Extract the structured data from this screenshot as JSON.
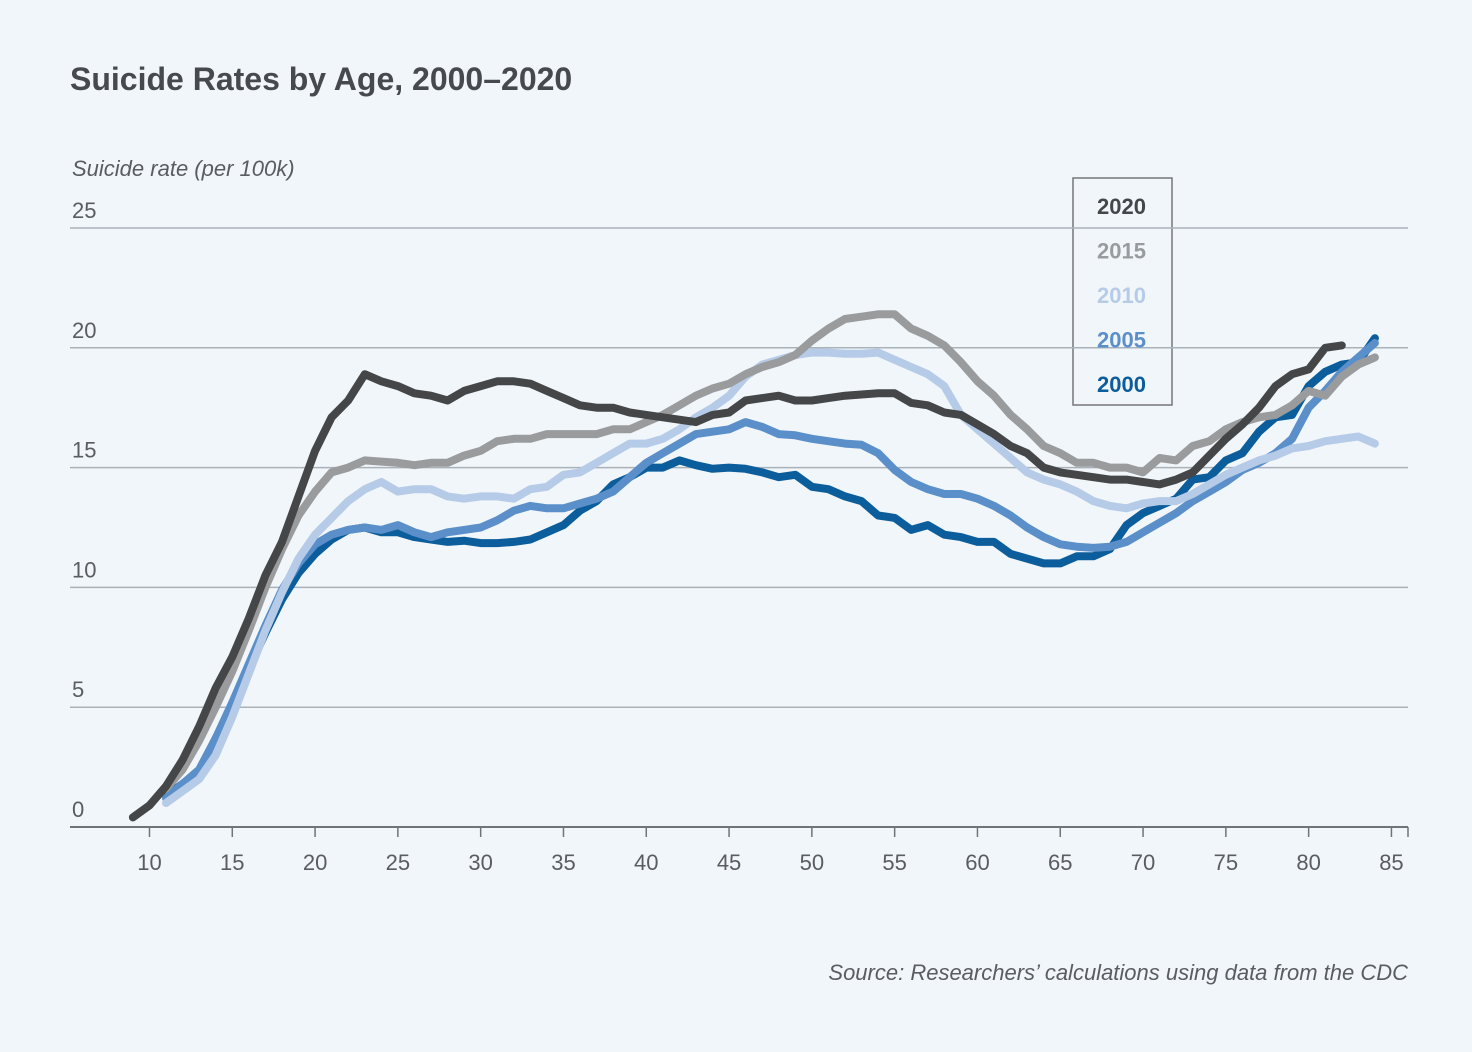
{
  "chart_data": {
    "type": "line",
    "title": "Suicide Rates by Age, 2000–2020",
    "y_label": "Suicide rate (per 100k)",
    "source": "Source: Researchers’ calculations using data from the CDC",
    "xlim": [
      5.2,
      86
    ],
    "xticks": [
      10,
      15,
      20,
      25,
      30,
      35,
      40,
      45,
      50,
      55,
      60,
      65,
      70,
      75,
      80,
      85
    ],
    "ylim": [
      0,
      25
    ],
    "yticks": [
      0,
      5,
      10,
      15,
      20,
      25
    ],
    "grid": true,
    "series": [
      {
        "name": "2020",
        "color": "#444648",
        "x": [
          9,
          10,
          11,
          12,
          13,
          14,
          15,
          16,
          17,
          18,
          19,
          20,
          21,
          22,
          23,
          24,
          25,
          26,
          27,
          28,
          29,
          30,
          31,
          32,
          33,
          34,
          35,
          36,
          37,
          38,
          39,
          40,
          41,
          42,
          43,
          44,
          45,
          46,
          47,
          48,
          49,
          50,
          51,
          52,
          53,
          54,
          55,
          56,
          57,
          58,
          59,
          60,
          61,
          62,
          63,
          64,
          65,
          66,
          67,
          68,
          69,
          70,
          71,
          72,
          73,
          74,
          75,
          76,
          77,
          78,
          79,
          80,
          81,
          82
        ],
        "values": [
          0.4,
          0.9,
          1.7,
          2.8,
          4.2,
          5.8,
          7.1,
          8.7,
          10.5,
          11.9,
          13.8,
          15.7,
          17.1,
          17.8,
          18.9,
          18.6,
          18.4,
          18.1,
          18.0,
          17.8,
          18.2,
          18.4,
          18.6,
          18.6,
          18.5,
          18.2,
          17.9,
          17.6,
          17.5,
          17.5,
          17.3,
          17.2,
          17.1,
          17.0,
          16.9,
          17.2,
          17.3,
          17.8,
          17.9,
          18.0,
          17.8,
          17.8,
          17.9,
          18.0,
          18.05,
          18.1,
          18.1,
          17.7,
          17.6,
          17.3,
          17.2,
          16.8,
          16.4,
          15.9,
          15.6,
          15.0,
          14.8,
          14.7,
          14.6,
          14.5,
          14.5,
          14.4,
          14.3,
          14.5,
          14.8,
          15.5,
          16.2,
          16.8,
          17.5,
          18.4,
          18.9,
          19.1,
          20.0,
          20.1
        ]
      },
      {
        "name": "2015",
        "color": "#9a9b9d",
        "x": [
          11,
          12,
          13,
          14,
          15,
          16,
          17,
          18,
          19,
          20,
          21,
          22,
          23,
          24,
          25,
          26,
          27,
          28,
          29,
          30,
          31,
          32,
          33,
          34,
          35,
          36,
          37,
          38,
          39,
          40,
          41,
          42,
          43,
          44,
          45,
          46,
          47,
          48,
          49,
          50,
          51,
          52,
          53,
          54,
          55,
          56,
          57,
          58,
          59,
          60,
          61,
          62,
          63,
          64,
          65,
          66,
          67,
          68,
          69,
          70,
          71,
          72,
          73,
          74,
          75,
          76,
          77,
          78,
          79,
          80,
          81,
          82,
          83,
          84
        ],
        "values": [
          1.6,
          2.4,
          3.6,
          5.0,
          6.5,
          8.2,
          10.0,
          11.6,
          13.0,
          14.0,
          14.8,
          15.0,
          15.3,
          15.25,
          15.2,
          15.1,
          15.2,
          15.2,
          15.5,
          15.7,
          16.1,
          16.2,
          16.2,
          16.4,
          16.4,
          16.4,
          16.4,
          16.6,
          16.6,
          16.9,
          17.2,
          17.6,
          18.0,
          18.3,
          18.5,
          18.9,
          19.2,
          19.4,
          19.7,
          20.3,
          20.8,
          21.2,
          21.3,
          21.4,
          21.4,
          20.8,
          20.5,
          20.1,
          19.4,
          18.6,
          18.0,
          17.2,
          16.6,
          15.9,
          15.6,
          15.2,
          15.2,
          15.0,
          15.0,
          14.8,
          15.4,
          15.3,
          15.9,
          16.1,
          16.6,
          16.9,
          17.1,
          17.2,
          17.6,
          18.2,
          18.0,
          18.8,
          19.3,
          19.6
        ]
      },
      {
        "name": "2010",
        "color": "#b5cbe7",
        "x": [
          11,
          12,
          13,
          14,
          15,
          16,
          17,
          18,
          19,
          20,
          21,
          22,
          23,
          24,
          25,
          26,
          27,
          28,
          29,
          30,
          31,
          32,
          33,
          34,
          35,
          36,
          37,
          38,
          39,
          40,
          41,
          42,
          43,
          44,
          45,
          46,
          47,
          48,
          49,
          50,
          51,
          52,
          53,
          54,
          55,
          56,
          57,
          58,
          59,
          60,
          61,
          62,
          63,
          64,
          65,
          66,
          67,
          68,
          69,
          70,
          71,
          72,
          73,
          74,
          75,
          76,
          77,
          78,
          79,
          80,
          81,
          82,
          83,
          84
        ],
        "values": [
          1.0,
          1.5,
          2.0,
          3.0,
          4.6,
          6.4,
          8.2,
          9.8,
          11.2,
          12.2,
          12.9,
          13.6,
          14.1,
          14.4,
          14.0,
          14.1,
          14.1,
          13.8,
          13.7,
          13.8,
          13.8,
          13.7,
          14.1,
          14.2,
          14.7,
          14.8,
          15.2,
          15.6,
          16.0,
          16.0,
          16.2,
          16.6,
          17.1,
          17.5,
          18.0,
          18.8,
          19.3,
          19.5,
          19.7,
          19.8,
          19.8,
          19.75,
          19.75,
          19.8,
          19.5,
          19.2,
          18.9,
          18.4,
          17.2,
          16.6,
          16.0,
          15.4,
          14.8,
          14.5,
          14.3,
          14.0,
          13.6,
          13.4,
          13.3,
          13.5,
          13.6,
          13.6,
          13.9,
          14.3,
          14.7,
          15.0,
          15.3,
          15.5,
          15.8,
          15.9,
          16.1,
          16.2,
          16.3,
          16.0
        ]
      },
      {
        "name": "2005",
        "color": "#5b8fc9",
        "x": [
          11,
          12,
          13,
          14,
          15,
          16,
          17,
          18,
          19,
          20,
          21,
          22,
          23,
          24,
          25,
          26,
          27,
          28,
          29,
          30,
          31,
          32,
          33,
          34,
          35,
          36,
          37,
          38,
          39,
          40,
          41,
          42,
          43,
          44,
          45,
          46,
          47,
          48,
          49,
          50,
          51,
          52,
          53,
          54,
          55,
          56,
          57,
          58,
          59,
          60,
          61,
          62,
          63,
          64,
          65,
          66,
          67,
          68,
          69,
          70,
          71,
          72,
          73,
          74,
          75,
          76,
          77,
          78,
          79,
          80,
          81,
          82,
          83,
          84
        ],
        "values": [
          1.2,
          1.8,
          2.4,
          3.7,
          5.2,
          6.8,
          8.4,
          9.9,
          11.0,
          11.8,
          12.2,
          12.4,
          12.5,
          12.4,
          12.6,
          12.3,
          12.1,
          12.3,
          12.4,
          12.5,
          12.8,
          13.2,
          13.4,
          13.3,
          13.3,
          13.5,
          13.7,
          14.0,
          14.6,
          15.2,
          15.6,
          16.0,
          16.4,
          16.5,
          16.6,
          16.9,
          16.7,
          16.4,
          16.35,
          16.2,
          16.1,
          16.0,
          15.95,
          15.6,
          14.9,
          14.4,
          14.1,
          13.9,
          13.9,
          13.7,
          13.4,
          13.0,
          12.5,
          12.1,
          11.8,
          11.7,
          11.65,
          11.7,
          11.9,
          12.3,
          12.7,
          13.1,
          13.6,
          14.0,
          14.4,
          14.9,
          15.2,
          15.6,
          16.2,
          17.5,
          18.2,
          19.0,
          19.6,
          20.2
        ]
      },
      {
        "name": "2000",
        "color": "#0b5d9b",
        "x": [
          11,
          12,
          13,
          14,
          15,
          16,
          17,
          18,
          19,
          20,
          21,
          22,
          23,
          24,
          25,
          26,
          27,
          28,
          29,
          30,
          31,
          32,
          33,
          34,
          35,
          36,
          37,
          38,
          39,
          40,
          41,
          42,
          43,
          44,
          45,
          46,
          47,
          48,
          49,
          50,
          51,
          52,
          53,
          54,
          55,
          56,
          57,
          58,
          59,
          60,
          61,
          62,
          63,
          64,
          65,
          66,
          67,
          68,
          69,
          70,
          71,
          72,
          73,
          74,
          75,
          76,
          77,
          78,
          79,
          80,
          81,
          82,
          83,
          84
        ],
        "values": [
          1.3,
          1.8,
          2.3,
          3.7,
          5.0,
          6.6,
          8.1,
          9.5,
          10.6,
          11.4,
          12.0,
          12.4,
          12.5,
          12.3,
          12.3,
          12.1,
          12.0,
          11.9,
          11.95,
          11.85,
          11.85,
          11.9,
          12.0,
          12.3,
          12.6,
          13.2,
          13.6,
          14.3,
          14.6,
          15.0,
          15.0,
          15.3,
          15.1,
          14.95,
          15.0,
          14.95,
          14.8,
          14.6,
          14.7,
          14.2,
          14.1,
          13.8,
          13.6,
          13.0,
          12.9,
          12.4,
          12.6,
          12.2,
          12.1,
          11.9,
          11.9,
          11.4,
          11.2,
          11.0,
          11.0,
          11.3,
          11.3,
          11.6,
          12.6,
          13.1,
          13.4,
          13.7,
          14.5,
          14.6,
          15.3,
          15.6,
          16.5,
          17.1,
          17.2,
          18.4,
          19.0,
          19.3,
          19.4,
          20.4
        ]
      }
    ]
  }
}
